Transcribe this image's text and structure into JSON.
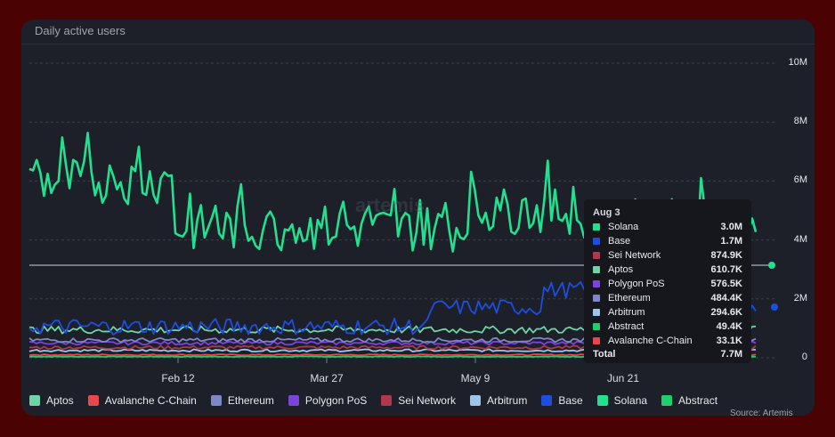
{
  "header": {
    "title": "Daily active users"
  },
  "watermark": "artemis",
  "footer_note": "Source: Artemis",
  "chart_data": {
    "type": "line",
    "title": "Daily active users",
    "x_ticks": [
      "Feb 12",
      "Mar 27",
      "May 9",
      "Jun 21"
    ],
    "y_ticks": [
      "0",
      "2M",
      "4M",
      "6M",
      "8M",
      "10M"
    ],
    "ylim": [
      0,
      10000000
    ],
    "grid": true,
    "legend_position": "bottom",
    "series": [
      {
        "name": "Aptos",
        "color": "#6fd3a8"
      },
      {
        "name": "Avalanche C-Chain",
        "color": "#e8474d"
      },
      {
        "name": "Ethereum",
        "color": "#7f86c9"
      },
      {
        "name": "Polygon PoS",
        "color": "#7b45d9"
      },
      {
        "name": "Sei Network",
        "color": "#b3374a"
      },
      {
        "name": "Arbitrum",
        "color": "#9ec4ea"
      },
      {
        "name": "Base",
        "color": "#1e4ee0"
      },
      {
        "name": "Solana",
        "color": "#22e08f"
      },
      {
        "name": "Abstract",
        "color": "#1fcf6f"
      }
    ],
    "tooltip": {
      "date": "Aug 3",
      "rows": [
        {
          "name": "Solana",
          "value": "3.0M",
          "color": "#22e08f"
        },
        {
          "name": "Base",
          "value": "1.7M",
          "color": "#1e4ee0"
        },
        {
          "name": "Sei Network",
          "value": "874.9K",
          "color": "#b3374a"
        },
        {
          "name": "Aptos",
          "value": "610.7K",
          "color": "#6fd3a8"
        },
        {
          "name": "Polygon PoS",
          "value": "576.5K",
          "color": "#7b45d9"
        },
        {
          "name": "Ethereum",
          "value": "484.4K",
          "color": "#7f86c9"
        },
        {
          "name": "Arbitrum",
          "value": "294.6K",
          "color": "#9ec4ea"
        },
        {
          "name": "Abstract",
          "value": "49.4K",
          "color": "#1fcf6f"
        },
        {
          "name": "Avalanche C-Chain",
          "value": "33.1K",
          "color": "#e8474d"
        }
      ],
      "total_label": "Total",
      "total_value": "7.7M"
    }
  }
}
